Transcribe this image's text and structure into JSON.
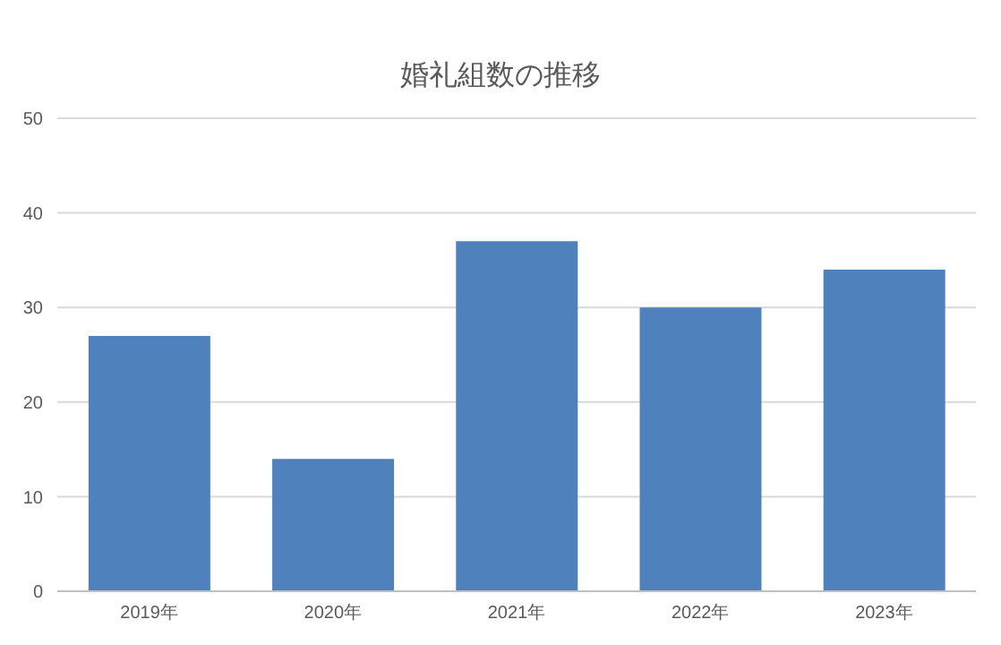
{
  "chart_data": {
    "type": "bar",
    "title": "婚礼組数の推移",
    "categories": [
      "2019年",
      "2020年",
      "2021年",
      "2022年",
      "2023年"
    ],
    "values": [
      27,
      14,
      37,
      30,
      34
    ],
    "color": "#4f81bd",
    "ylim": [
      0,
      50
    ],
    "yticks": [
      0,
      10,
      20,
      30,
      40,
      50
    ],
    "grid": "y"
  }
}
